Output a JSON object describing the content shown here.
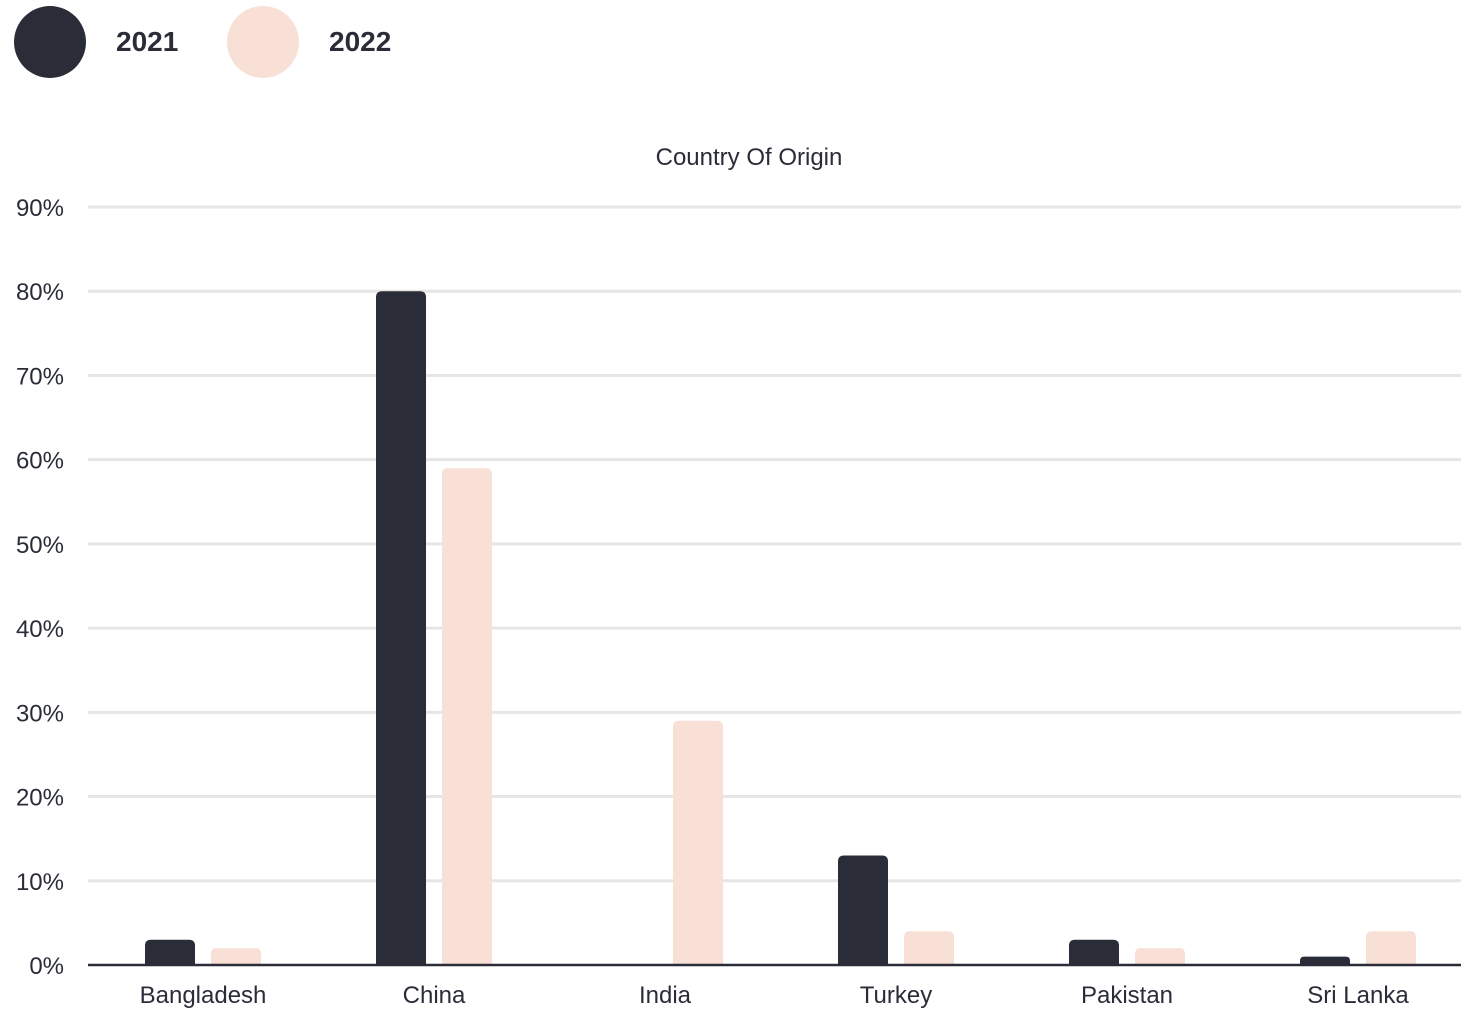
{
  "colors": {
    "series_2021": "#2a2d38",
    "series_2022": "#f9e0d7",
    "grid": "#e6e6e6",
    "axis": "#2a2d38",
    "text": "#2a2d38"
  },
  "legend": {
    "items": [
      {
        "label": "2021",
        "color": "#2a2d38"
      },
      {
        "label": "2022",
        "color": "#f9e0d7"
      }
    ]
  },
  "chart_data": {
    "type": "bar",
    "title": "Country Of Origin",
    "xlabel": "",
    "ylabel": "",
    "categories": [
      "Bangladesh",
      "China",
      "India",
      "Turkey",
      "Pakistan",
      "Sri Lanka"
    ],
    "series": [
      {
        "name": "2021",
        "values": [
          3,
          80,
          0,
          13,
          3,
          1
        ]
      },
      {
        "name": "2022",
        "values": [
          2,
          59,
          29,
          4,
          2,
          4
        ]
      }
    ],
    "ylim": [
      0,
      90
    ],
    "yticks": [
      0,
      10,
      20,
      30,
      40,
      50,
      60,
      70,
      80,
      90
    ],
    "ytick_labels": [
      "0%",
      "10%",
      "20%",
      "30%",
      "40%",
      "50%",
      "60%",
      "70%",
      "80%",
      "90%"
    ],
    "grid": true,
    "legend_position": "top-left"
  }
}
